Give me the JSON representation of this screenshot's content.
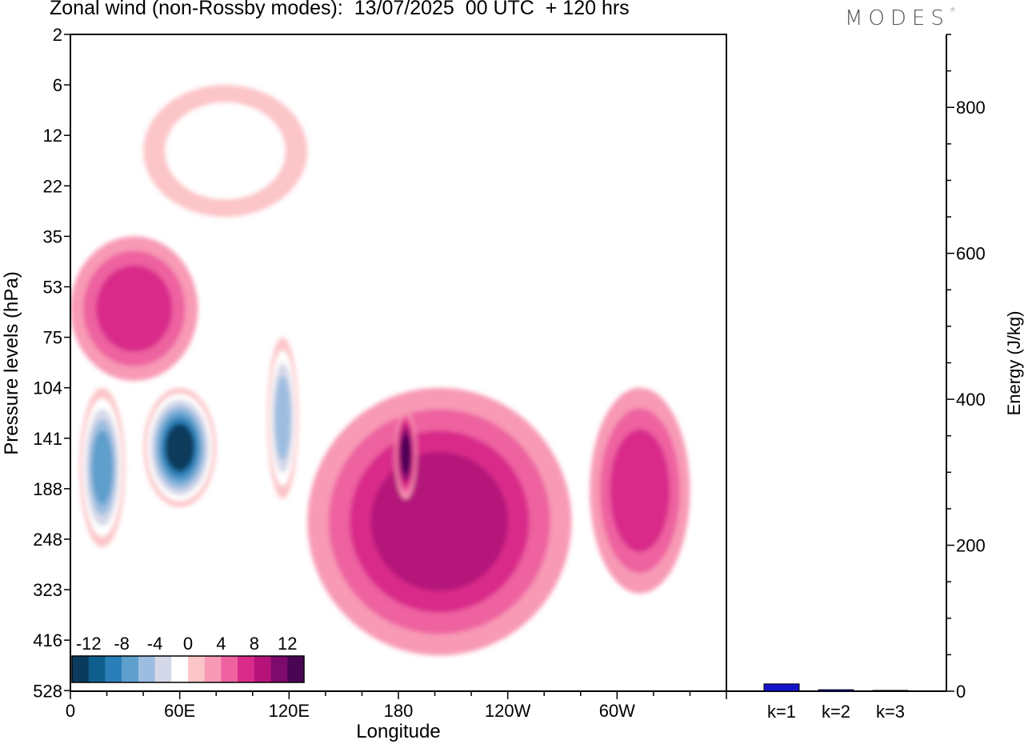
{
  "title": "Zonal wind (non-Rossby modes):  13/07/2025  00 UTC  + 120 hrs",
  "brand": "MODES",
  "chart_data": [
    {
      "type": "heatmap",
      "title": "Zonal wind (non-Rossby modes):  13/07/2025  00 UTC  + 120 hrs",
      "xlabel": "Longitude",
      "ylabel": "Pressure levels (hPa)",
      "x_ticks": [
        "0",
        "60E",
        "120E",
        "180",
        "120W",
        "60W"
      ],
      "x_tick_values": [
        0,
        60,
        120,
        180,
        240,
        300
      ],
      "x_range": [
        0,
        360
      ],
      "y_ticks": [
        "2",
        "6",
        "12",
        "22",
        "35",
        "53",
        "75",
        "104",
        "141",
        "188",
        "248",
        "323",
        "416",
        "528"
      ],
      "colorbar_labels": [
        "-12",
        "-8",
        "-4",
        "0",
        "4",
        "8",
        "12"
      ],
      "colorbar_levels": [
        -14,
        -12,
        -10,
        -8,
        -6,
        -4,
        -2,
        2,
        4,
        6,
        8,
        10,
        12,
        14
      ],
      "colorbar_colors": [
        "#0a3a5c",
        "#0f5f8e",
        "#2b7fb8",
        "#5f9fcc",
        "#9cbde0",
        "#d5d8e8",
        "#ffffff",
        "#fcc5c8",
        "#f89ab5",
        "#ee62a0",
        "#d92c8a",
        "#b5137a",
        "#7d0a6c",
        "#4b0555"
      ],
      "regions": [
        {
          "name": "strong-easterly-indian-ocean",
          "lon_range": [
            40,
            80
          ],
          "plev_range": [
            104,
            210
          ],
          "value": -14
        },
        {
          "name": "easterly-africa",
          "lon_range": [
            5,
            30
          ],
          "plev_range": [
            104,
            260
          ],
          "value": -10
        },
        {
          "name": "easterly-maritime",
          "lon_range": [
            108,
            125
          ],
          "plev_range": [
            75,
            200
          ],
          "value": -8
        },
        {
          "name": "westerly-pacific-core",
          "lon_range": [
            130,
            275
          ],
          "plev_range": [
            104,
            450
          ],
          "value": 8
        },
        {
          "name": "westerly-central-pacific-max",
          "lon_range": [
            178,
            190
          ],
          "plev_range": [
            120,
            200
          ],
          "value": 12
        },
        {
          "name": "westerly-east-pacific",
          "lon_range": [
            285,
            340
          ],
          "plev_range": [
            104,
            330
          ],
          "value": 6
        },
        {
          "name": "westerly-lower-strat",
          "lon_range": [
            0,
            70
          ],
          "plev_range": [
            35,
            100
          ],
          "value": 6
        },
        {
          "name": "easterly-upper-strat",
          "lon_range": [
            40,
            130
          ],
          "plev_range": [
            6,
            30
          ],
          "value": -4
        }
      ]
    },
    {
      "type": "bar",
      "categories": [
        "k=1",
        "k=2",
        "k=3"
      ],
      "values": [
        10,
        2,
        1
      ],
      "ylabel": "Energy (J/kg)",
      "ylim": [
        0,
        900
      ],
      "y_ticks": [
        0,
        200,
        400,
        600,
        800
      ],
      "bar_color": "#1515c8"
    }
  ]
}
